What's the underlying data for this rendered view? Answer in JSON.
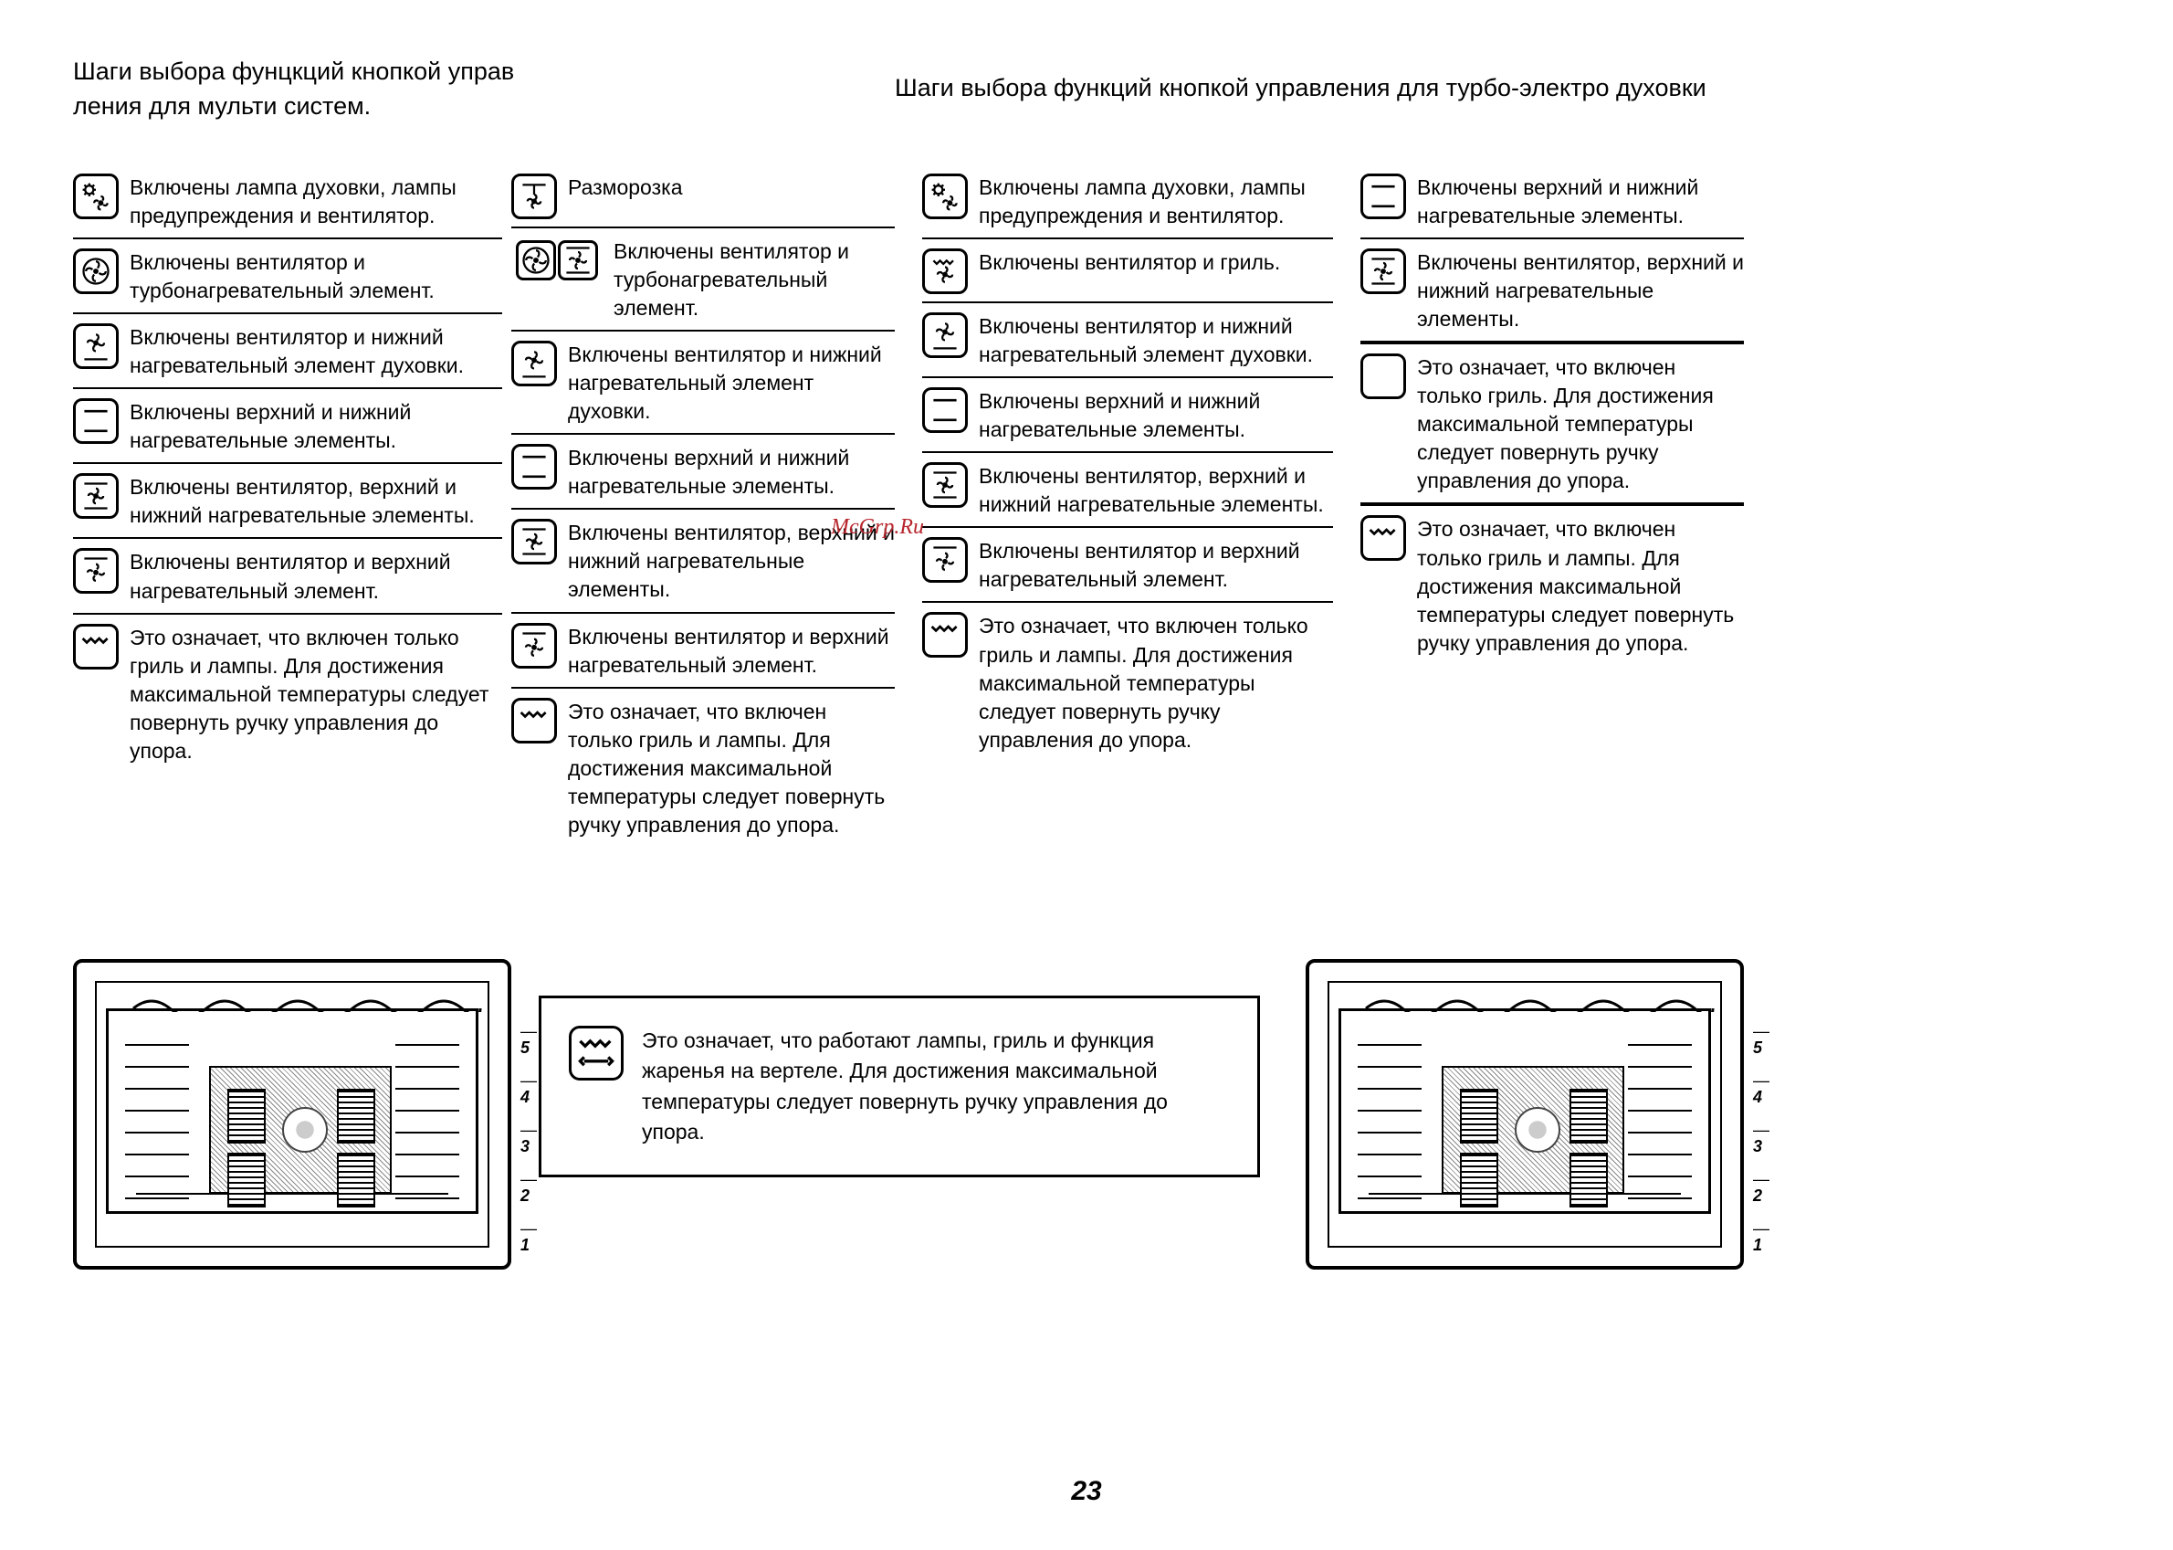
{
  "page_number": "23",
  "watermark": "McGrp.Ru",
  "colors": {
    "text": "#000000",
    "bg": "#ffffff",
    "watermark": "#b8262d"
  },
  "heading_left": "Шаги выбора фунцкций кнопкой управ ления для мульти систем.",
  "heading_right": "Шаги выбора функций кнопкой управления для турбо-электро духовки",
  "col1": [
    {
      "icon": "lamp-fan",
      "text": "Включены лампа духовки, лампы предупреждения и вентилятор."
    },
    {
      "icon": "turbo-fan",
      "text": "Включены вентилятор и турбонагревательный элемент."
    },
    {
      "icon": "fan-bottom",
      "text": "Включены вентилятор и нижний нагревательный элемент духовки."
    },
    {
      "icon": "top-bottom",
      "text": "Включены верхний и нижний нагревательные элементы."
    },
    {
      "icon": "fan-top-bottom",
      "text": "Включены вентилятор, верхний и нижний нагревательные элементы."
    },
    {
      "icon": "fan-top",
      "text": "Включены вентилятор и верхний нагревательный элемент."
    },
    {
      "icon": "grill",
      "text": "Это означает, что включен только гриль и лампы.\nДля достижения максимальной температуры следует повернуть ручку управления до упора."
    }
  ],
  "col2": [
    {
      "icon": "defrost",
      "text": "Разморозка"
    },
    {
      "icon": "dual-fan",
      "text": "Включены вентилятор и турбонагревательный элемент."
    },
    {
      "icon": "fan-bottom",
      "text": "Включены вентилятор и нижний нагревательный элемент духовки."
    },
    {
      "icon": "top-bottom",
      "text": "Включены верхний и нижний нагревательные элементы."
    },
    {
      "icon": "fan-top-bottom",
      "text": "Включены вентилятор, верхний и нижний нагревательные элементы."
    },
    {
      "icon": "fan-top",
      "text": "Включены вентилятор и верхний нагревательный элемент."
    },
    {
      "icon": "grill",
      "text": "Это означает, что включен только гриль и лампы.\nДля достижения максимальной температуры следует повернуть ручку управления до упора."
    }
  ],
  "col3": [
    {
      "icon": "lamp-fan",
      "text": "Включены лампа духовки, лампы предупреждения и вентилятор."
    },
    {
      "icon": "fan-grill",
      "text": "Включены вентилятор и гриль."
    },
    {
      "icon": "fan-bottom",
      "text": "Включены вентилятор и нижний нагревательный элемент духовки."
    },
    {
      "icon": "top-bottom",
      "text": "Включены верхний и нижний нагревательные элементы."
    },
    {
      "icon": "fan-top-bottom",
      "text": "Включены вентилятор, верхний и нижний нагревательные элементы."
    },
    {
      "icon": "fan-top",
      "text": "Включены вентилятор и верхний нагревательный элемент."
    },
    {
      "icon": "grill",
      "text": "Это означает, что включен только гриль и лампы.\nДля достижения максимальной температуры следует повернуть ручку управления до упора."
    }
  ],
  "col4": [
    {
      "icon": "top-bottom",
      "text": "Включены верхний и нижний нагревательные элементы."
    },
    {
      "icon": "fan-top-bottom-b",
      "text": "Включены вентилятор, верхний и нижний нагревательные элементы."
    },
    {
      "icon": "blank-sq",
      "text": "Это означает, что включен только гриль.\nДля достижения максимальной температуры следует повернуть ручку управления до упора.",
      "heavy": true
    },
    {
      "icon": "grill",
      "text": "Это означает, что включен только гриль и лампы.\nДля достижения максимальной температуры следует повернуть ручку управления до упора.",
      "heavy": true
    }
  ],
  "center_box": {
    "icon": "grill-rotisserie",
    "text": "Это означает, что работают лампы, гриль и функция жаренья на вертеле.\nДля достижения максимальной температуры следует повернуть ручку управления до упора."
  },
  "oven_labels": [
    "5",
    "4",
    "3",
    "2",
    "1"
  ]
}
